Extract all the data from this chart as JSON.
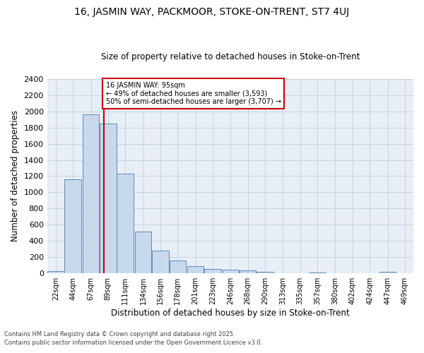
{
  "title": "16, JASMIN WAY, PACKMOOR, STOKE-ON-TRENT, ST7 4UJ",
  "subtitle": "Size of property relative to detached houses in Stoke-on-Trent",
  "xlabel": "Distribution of detached houses by size in Stoke-on-Trent",
  "ylabel": "Number of detached properties",
  "footnote1": "Contains HM Land Registry data © Crown copyright and database right 2025.",
  "footnote2": "Contains public sector information licensed under the Open Government Licence v3.0.",
  "bins": [
    22,
    44,
    67,
    89,
    111,
    134,
    156,
    178,
    201,
    223,
    246,
    268,
    290,
    313,
    335,
    357,
    380,
    402,
    424,
    447,
    469
  ],
  "values": [
    25,
    1160,
    1960,
    1850,
    1230,
    515,
    280,
    155,
    90,
    55,
    45,
    40,
    15,
    0,
    0,
    12,
    0,
    0,
    0,
    15
  ],
  "property_size": 95,
  "annotation_title": "16 JASMIN WAY: 95sqm",
  "annotation_line1": "← 49% of detached houses are smaller (3,593)",
  "annotation_line2": "50% of semi-detached houses are larger (3,707) →",
  "bar_facecolor": "#c9d9ec",
  "bar_edgecolor": "#5b8db8",
  "line_color": "#cc0000",
  "grid_color": "#c8d4e3",
  "bg_color": "#e8eef5",
  "ylim": [
    0,
    2400
  ],
  "yticks": [
    0,
    200,
    400,
    600,
    800,
    1000,
    1200,
    1400,
    1600,
    1800,
    2000,
    2200,
    2400
  ]
}
